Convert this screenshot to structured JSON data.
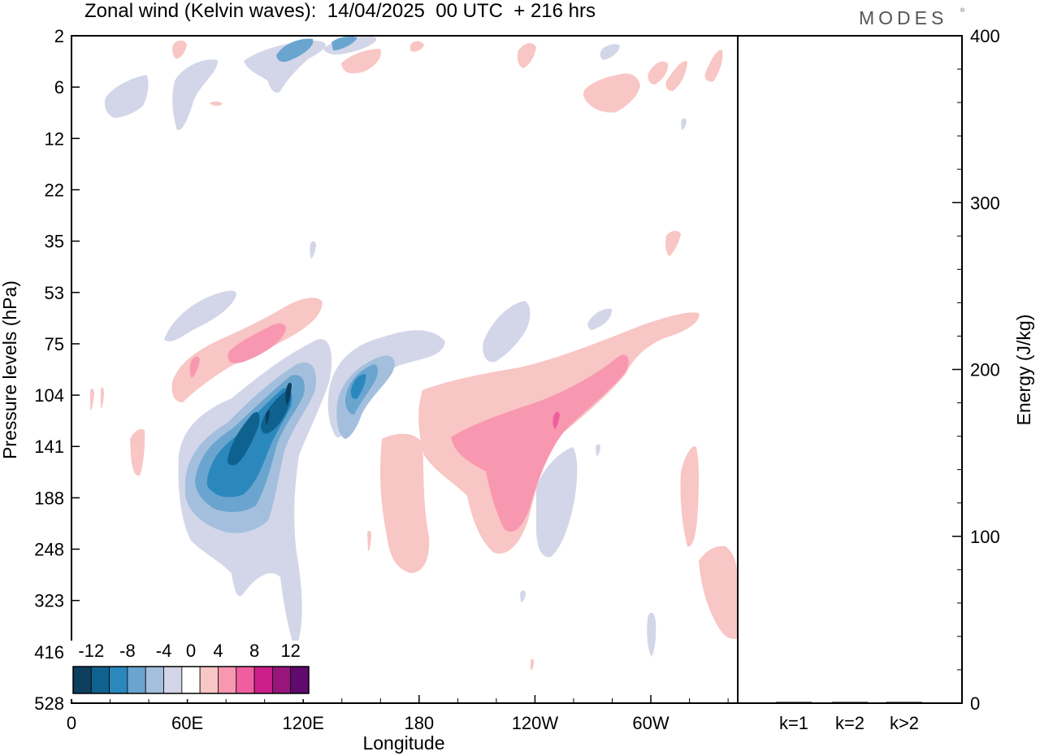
{
  "title": "Zonal wind (Kelvin waves):  14/04/2025  00 UTC  + 216 hrs",
  "logo": "MODES",
  "logo_mark": "®",
  "chart_data": [
    {
      "type": "heatmap",
      "title": "Zonal wind (Kelvin waves):  14/04/2025  00 UTC  + 216 hrs",
      "xlabel": "Longitude",
      "ylabel": "Pressure levels (hPa)",
      "x_ticks": [
        "0",
        "60E",
        "120E",
        "180",
        "120W",
        "60W"
      ],
      "x_tick_values": [
        0,
        60,
        120,
        180,
        240,
        300
      ],
      "xlim": [
        0,
        345
      ],
      "y_ticks": [
        "2",
        "6",
        "12",
        "22",
        "35",
        "53",
        "75",
        "104",
        "141",
        "188",
        "248",
        "323",
        "416",
        "528"
      ],
      "y_scale": "log",
      "y_reversed": true,
      "colorbar": {
        "labels": [
          "-12",
          "-8",
          "-4",
          "0",
          "4",
          "8",
          "12"
        ],
        "levels": [
          -14,
          -12,
          -10,
          -8,
          -6,
          -4,
          -2,
          2,
          4,
          6,
          8,
          10,
          12,
          14
        ],
        "colors": [
          "#0d3e5e",
          "#0f628f",
          "#2a88bd",
          "#6aa5cf",
          "#a4bfdd",
          "#d3d6e8",
          "#ffffff",
          "#f8c6c4",
          "#f898b0",
          "#ef5fa0",
          "#cc1f89",
          "#98157c",
          "#600a6e"
        ]
      },
      "regions": [
        {
          "sign": "negative",
          "level": "weak",
          "lon_center": 100,
          "level_center_hPa": 180
        },
        {
          "sign": "negative",
          "level": "strong",
          "lon_center": 100,
          "level_center_hPa": 130
        },
        {
          "sign": "negative",
          "level": "moderate",
          "lon_center": 150,
          "level_center_hPa": 105
        },
        {
          "sign": "positive",
          "level": "moderate",
          "lon_center": 85,
          "level_center_hPa": 80
        },
        {
          "sign": "positive",
          "level": "moderate",
          "lon_center": 250,
          "level_center_hPa": 130
        },
        {
          "sign": "positive",
          "level": "weak",
          "lon_center": 190,
          "level_center_hPa": 190
        },
        {
          "sign": "positive",
          "level": "weak",
          "lon_center": 340,
          "level_center_hPa": 280
        }
      ]
    },
    {
      "type": "bar",
      "categories": [
        "k=1",
        "k=2",
        "k>2"
      ],
      "values": [
        0.5,
        0.3,
        0.3
      ],
      "ylabel": "Energy (J/kg)",
      "ylim": [
        0,
        400
      ],
      "y_ticks": [
        "0",
        "100",
        "200",
        "300",
        "400"
      ],
      "y_tick_values": [
        0,
        100,
        200,
        300,
        400
      ]
    }
  ]
}
